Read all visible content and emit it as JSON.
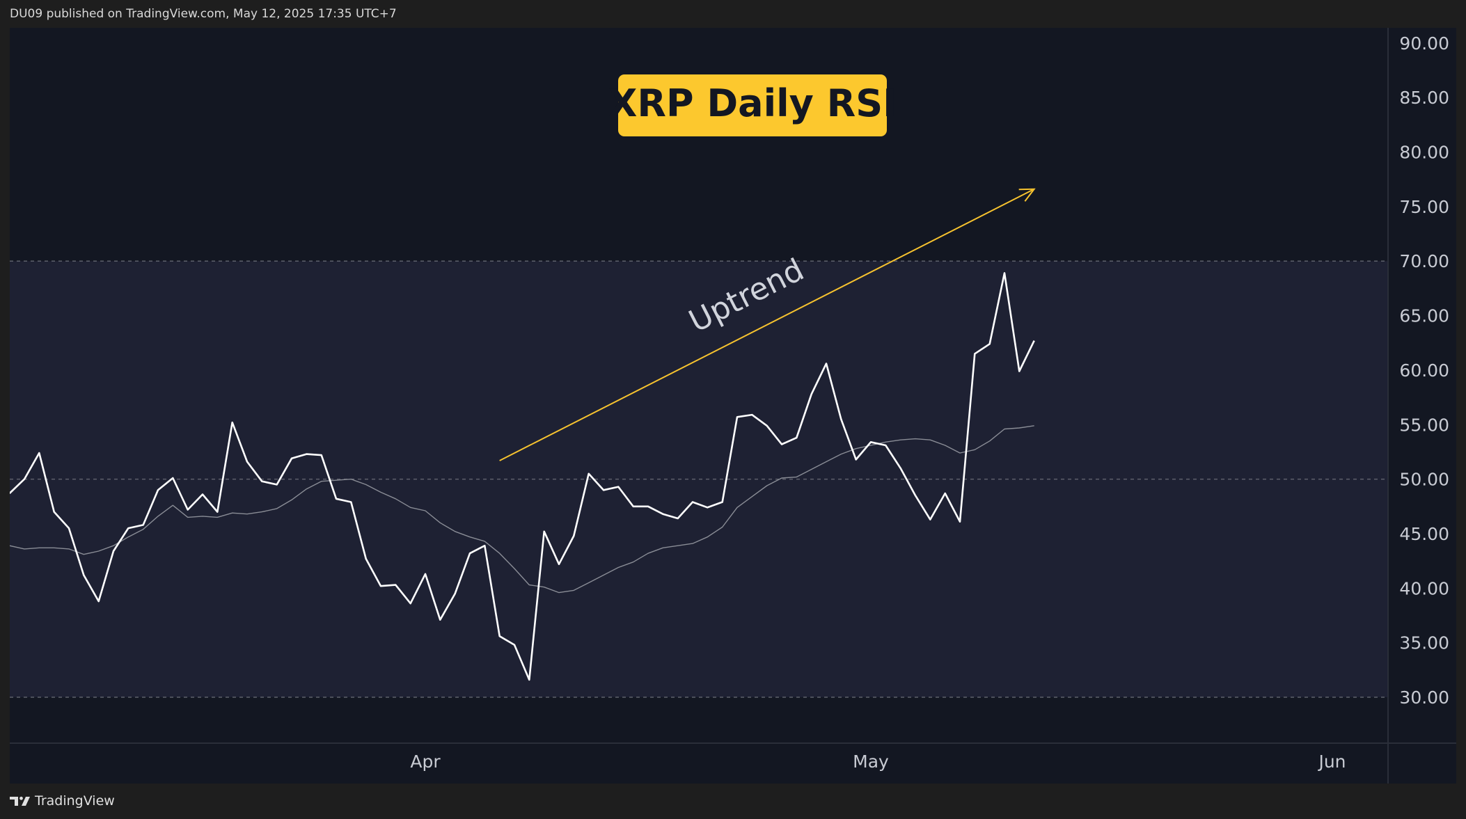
{
  "header": {
    "text": "DU09 published on TradingView.com, May 12, 2025 17:35 UTC+7"
  },
  "footer": {
    "brand": "TradingView",
    "logo_icon": "tradingview-logo-icon"
  },
  "colors": {
    "background": "#131722",
    "band": "#1e2133",
    "rsi_line": "#ffffff",
    "ma_line": "#8a8d96",
    "title_bg": "#fcc82e",
    "arrow": "#f7c32f",
    "grid_dash": "#5d606b"
  },
  "chart_data": {
    "type": "line",
    "title": "XRP Daily RSI",
    "annotation": "Uptrend",
    "ylim": [
      25.9,
      91.5
    ],
    "y_ticks": [
      "30.00",
      "35.00",
      "40.00",
      "45.00",
      "50.00",
      "55.00",
      "60.00",
      "65.00",
      "70.00",
      "75.00",
      "80.00",
      "85.00",
      "90.00"
    ],
    "y_tick_values": [
      30,
      35,
      40,
      45,
      50,
      55,
      60,
      65,
      70,
      75,
      80,
      85,
      90
    ],
    "x_labels": [
      {
        "label": "Apr",
        "date": "2025-04-01"
      },
      {
        "label": "May",
        "date": "2025-05-01"
      },
      {
        "label": "Jun",
        "date": "2025-06-01"
      }
    ],
    "bands": {
      "upper": 70,
      "middle": 50,
      "lower": 30
    },
    "x_range": [
      "2025-03-04",
      "2025-06-04"
    ],
    "series": [
      {
        "values": [
          [
            "2025-03-04",
            48.7
          ],
          [
            "2025-03-05",
            50.0
          ],
          [
            "2025-03-06",
            52.4
          ],
          [
            "2025-03-07",
            47.0
          ],
          [
            "2025-03-08",
            45.5
          ],
          [
            "2025-03-09",
            41.2
          ],
          [
            "2025-03-10",
            38.8
          ],
          [
            "2025-03-11",
            43.4
          ],
          [
            "2025-03-12",
            45.5
          ],
          [
            "2025-03-13",
            45.8
          ],
          [
            "2025-03-14",
            49.0
          ],
          [
            "2025-03-15",
            50.1
          ],
          [
            "2025-03-16",
            47.2
          ],
          [
            "2025-03-17",
            48.6
          ],
          [
            "2025-03-18",
            47.0
          ],
          [
            "2025-03-19",
            55.2
          ],
          [
            "2025-03-20",
            51.6
          ],
          [
            "2025-03-21",
            49.8
          ],
          [
            "2025-03-22",
            49.5
          ],
          [
            "2025-03-23",
            51.9
          ],
          [
            "2025-03-24",
            52.3
          ],
          [
            "2025-03-25",
            52.2
          ],
          [
            "2025-03-26",
            48.2
          ],
          [
            "2025-03-27",
            47.9
          ],
          [
            "2025-03-28",
            42.7
          ],
          [
            "2025-03-29",
            40.2
          ],
          [
            "2025-03-30",
            40.3
          ],
          [
            "2025-03-31",
            38.6
          ],
          [
            "2025-04-01",
            41.3
          ],
          [
            "2025-04-02",
            37.1
          ],
          [
            "2025-04-03",
            39.5
          ],
          [
            "2025-04-04",
            43.2
          ],
          [
            "2025-04-05",
            43.9
          ],
          [
            "2025-04-06",
            35.6
          ],
          [
            "2025-04-07",
            34.8
          ],
          [
            "2025-04-08",
            31.6
          ],
          [
            "2025-04-09",
            45.2
          ],
          [
            "2025-04-10",
            42.2
          ],
          [
            "2025-04-11",
            44.8
          ],
          [
            "2025-04-12",
            50.5
          ],
          [
            "2025-04-13",
            49.0
          ],
          [
            "2025-04-14",
            49.3
          ],
          [
            "2025-04-15",
            47.5
          ],
          [
            "2025-04-16",
            47.5
          ],
          [
            "2025-04-17",
            46.8
          ],
          [
            "2025-04-18",
            46.4
          ],
          [
            "2025-04-19",
            47.9
          ],
          [
            "2025-04-20",
            47.4
          ],
          [
            "2025-04-21",
            47.9
          ],
          [
            "2025-04-22",
            55.7
          ],
          [
            "2025-04-23",
            55.9
          ],
          [
            "2025-04-24",
            54.9
          ],
          [
            "2025-04-25",
            53.2
          ],
          [
            "2025-04-26",
            53.8
          ],
          [
            "2025-04-27",
            57.8
          ],
          [
            "2025-04-28",
            60.6
          ],
          [
            "2025-04-29",
            55.5
          ],
          [
            "2025-04-30",
            51.8
          ],
          [
            "2025-05-01",
            53.4
          ],
          [
            "2025-05-02",
            53.1
          ],
          [
            "2025-05-03",
            51.0
          ],
          [
            "2025-05-04",
            48.5
          ],
          [
            "2025-05-05",
            46.3
          ],
          [
            "2025-05-06",
            48.7
          ],
          [
            "2025-05-07",
            46.1
          ],
          [
            "2025-05-08",
            61.5
          ],
          [
            "2025-05-09",
            62.4
          ],
          [
            "2025-05-10",
            68.9
          ],
          [
            "2025-05-11",
            59.9
          ],
          [
            "2025-05-12",
            62.7
          ]
        ]
      },
      {
        "values": [
          [
            "2025-03-04",
            43.9
          ],
          [
            "2025-03-05",
            43.6
          ],
          [
            "2025-03-06",
            43.7
          ],
          [
            "2025-03-07",
            43.7
          ],
          [
            "2025-03-08",
            43.6
          ],
          [
            "2025-03-09",
            43.1
          ],
          [
            "2025-03-10",
            43.4
          ],
          [
            "2025-03-11",
            43.9
          ],
          [
            "2025-03-12",
            44.7
          ],
          [
            "2025-03-13",
            45.4
          ],
          [
            "2025-03-14",
            46.6
          ],
          [
            "2025-03-15",
            47.6
          ],
          [
            "2025-03-16",
            46.5
          ],
          [
            "2025-03-17",
            46.6
          ],
          [
            "2025-03-18",
            46.5
          ],
          [
            "2025-03-19",
            46.9
          ],
          [
            "2025-03-20",
            46.8
          ],
          [
            "2025-03-21",
            47.0
          ],
          [
            "2025-03-22",
            47.3
          ],
          [
            "2025-03-23",
            48.1
          ],
          [
            "2025-03-24",
            49.1
          ],
          [
            "2025-03-25",
            49.8
          ],
          [
            "2025-03-26",
            49.9
          ],
          [
            "2025-03-27",
            50.0
          ],
          [
            "2025-03-28",
            49.5
          ],
          [
            "2025-03-29",
            48.8
          ],
          [
            "2025-03-30",
            48.2
          ],
          [
            "2025-03-31",
            47.4
          ],
          [
            "2025-04-01",
            47.1
          ],
          [
            "2025-04-02",
            46.0
          ],
          [
            "2025-04-03",
            45.2
          ],
          [
            "2025-04-04",
            44.7
          ],
          [
            "2025-04-05",
            44.3
          ],
          [
            "2025-04-06",
            43.2
          ],
          [
            "2025-04-07",
            41.8
          ],
          [
            "2025-04-08",
            40.3
          ],
          [
            "2025-04-09",
            40.1
          ],
          [
            "2025-04-10",
            39.6
          ],
          [
            "2025-04-11",
            39.8
          ],
          [
            "2025-04-12",
            40.5
          ],
          [
            "2025-04-13",
            41.2
          ],
          [
            "2025-04-14",
            41.9
          ],
          [
            "2025-04-15",
            42.4
          ],
          [
            "2025-04-16",
            43.2
          ],
          [
            "2025-04-17",
            43.7
          ],
          [
            "2025-04-18",
            43.9
          ],
          [
            "2025-04-19",
            44.1
          ],
          [
            "2025-04-20",
            44.7
          ],
          [
            "2025-04-21",
            45.6
          ],
          [
            "2025-04-22",
            47.4
          ],
          [
            "2025-04-23",
            48.4
          ],
          [
            "2025-04-24",
            49.4
          ],
          [
            "2025-04-25",
            50.1
          ],
          [
            "2025-04-26",
            50.2
          ],
          [
            "2025-04-27",
            50.9
          ],
          [
            "2025-04-28",
            51.6
          ],
          [
            "2025-04-29",
            52.3
          ],
          [
            "2025-04-30",
            52.8
          ],
          [
            "2025-05-01",
            53.1
          ],
          [
            "2025-05-02",
            53.4
          ],
          [
            "2025-05-03",
            53.6
          ],
          [
            "2025-05-04",
            53.7
          ],
          [
            "2025-05-05",
            53.6
          ],
          [
            "2025-05-06",
            53.1
          ],
          [
            "2025-05-07",
            52.4
          ],
          [
            "2025-05-08",
            52.7
          ],
          [
            "2025-05-09",
            53.5
          ],
          [
            "2025-05-10",
            54.6
          ],
          [
            "2025-05-11",
            54.7
          ],
          [
            "2025-05-12",
            54.9
          ]
        ]
      }
    ],
    "trend_arrow": {
      "start": [
        "2025-04-06",
        51.7
      ],
      "end": [
        "2025-05-12",
        76.6
      ]
    },
    "grid": false,
    "legend": "none"
  }
}
